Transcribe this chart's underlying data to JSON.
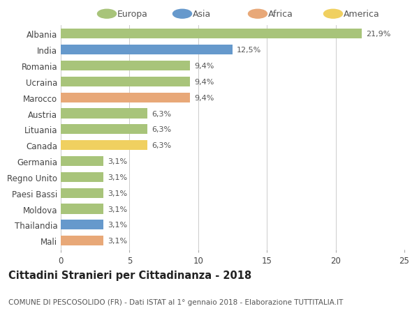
{
  "countries": [
    "Albania",
    "India",
    "Romania",
    "Ucraina",
    "Marocco",
    "Austria",
    "Lituania",
    "Canada",
    "Germania",
    "Regno Unito",
    "Paesi Bassi",
    "Moldova",
    "Thailandia",
    "Mali"
  ],
  "values": [
    21.9,
    12.5,
    9.4,
    9.4,
    9.4,
    6.3,
    6.3,
    6.3,
    3.1,
    3.1,
    3.1,
    3.1,
    3.1,
    3.1
  ],
  "labels": [
    "21,9%",
    "12,5%",
    "9,4%",
    "9,4%",
    "9,4%",
    "6,3%",
    "6,3%",
    "6,3%",
    "3,1%",
    "3,1%",
    "3,1%",
    "3,1%",
    "3,1%",
    "3,1%"
  ],
  "continents": [
    "Europa",
    "Asia",
    "Europa",
    "Europa",
    "Africa",
    "Europa",
    "Europa",
    "America",
    "Europa",
    "Europa",
    "Europa",
    "Europa",
    "Asia",
    "Africa"
  ],
  "continent_colors": {
    "Europa": "#a8c47a",
    "Asia": "#6699cc",
    "Africa": "#e8a878",
    "America": "#f0d060"
  },
  "legend_order": [
    "Europa",
    "Asia",
    "Africa",
    "America"
  ],
  "xlim": [
    0,
    25
  ],
  "xticks": [
    0,
    5,
    10,
    15,
    20,
    25
  ],
  "title": "Cittadini Stranieri per Cittadinanza - 2018",
  "subtitle": "COMUNE DI PESCOSOLIDO (FR) - Dati ISTAT al 1° gennaio 2018 - Elaborazione TUTTITALIA.IT",
  "title_fontsize": 10.5,
  "subtitle_fontsize": 7.5,
  "background_color": "#ffffff",
  "grid_color": "#cccccc",
  "bar_height": 0.62,
  "label_fontsize": 8,
  "tick_fontsize": 8.5
}
